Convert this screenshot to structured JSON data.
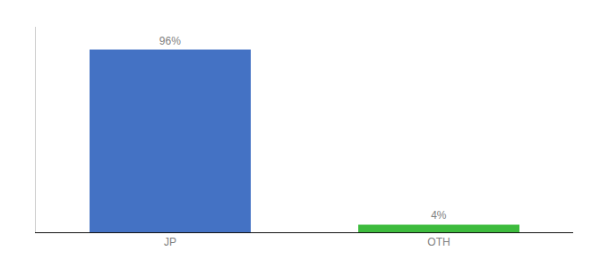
{
  "chart_data": {
    "type": "bar",
    "categories": [
      "JP",
      "OTH"
    ],
    "values": [
      96,
      4
    ],
    "value_labels": [
      "96%",
      "4%"
    ],
    "colors": [
      "#4472c4",
      "#3dbb3d"
    ],
    "ylim": [
      0,
      108
    ],
    "data_labels": true,
    "tick_labels": "x",
    "grid": false
  }
}
